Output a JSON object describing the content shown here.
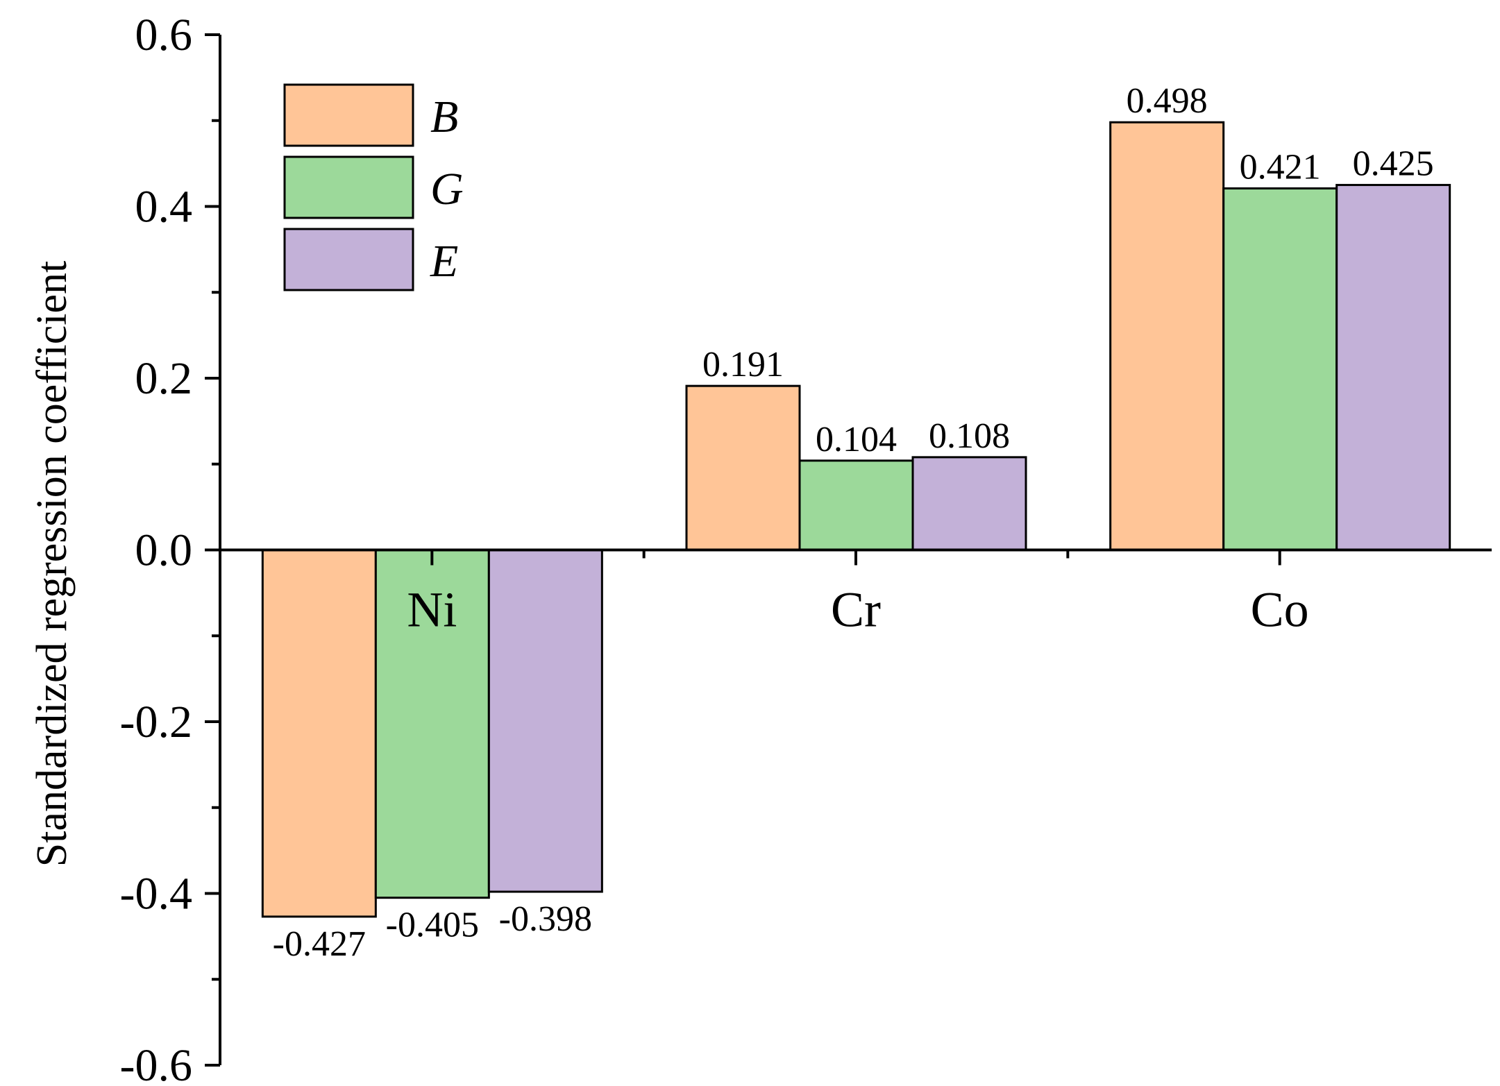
{
  "chart_data": {
    "type": "bar",
    "title": "",
    "xlabel": "",
    "ylabel": "Standardized regression coefficient",
    "ylim": [
      -0.6,
      0.6
    ],
    "yticks": [
      -0.6,
      -0.4,
      -0.2,
      0.0,
      0.2,
      0.4,
      0.6
    ],
    "ytick_labels": [
      "-0.6",
      "-0.4",
      "-0.2",
      "0.0",
      "0.2",
      "0.4",
      "0.6"
    ],
    "categories": [
      "Ni",
      "Cr",
      "Co"
    ],
    "series": [
      {
        "name": "B",
        "color": "#FFC597",
        "values": [
          -0.427,
          0.191,
          0.498
        ],
        "labels": [
          "-0.427",
          "0.191",
          "0.498"
        ]
      },
      {
        "name": "G",
        "color": "#9CD99A",
        "values": [
          -0.405,
          0.104,
          0.421
        ],
        "labels": [
          "-0.405",
          "0.104",
          "0.421"
        ]
      },
      {
        "name": "E",
        "color": "#C3B1D8",
        "values": [
          -0.398,
          0.108,
          0.425
        ],
        "labels": [
          "-0.398",
          "0.108",
          "0.425"
        ]
      }
    ],
    "legend": "top-left",
    "grid": false
  }
}
